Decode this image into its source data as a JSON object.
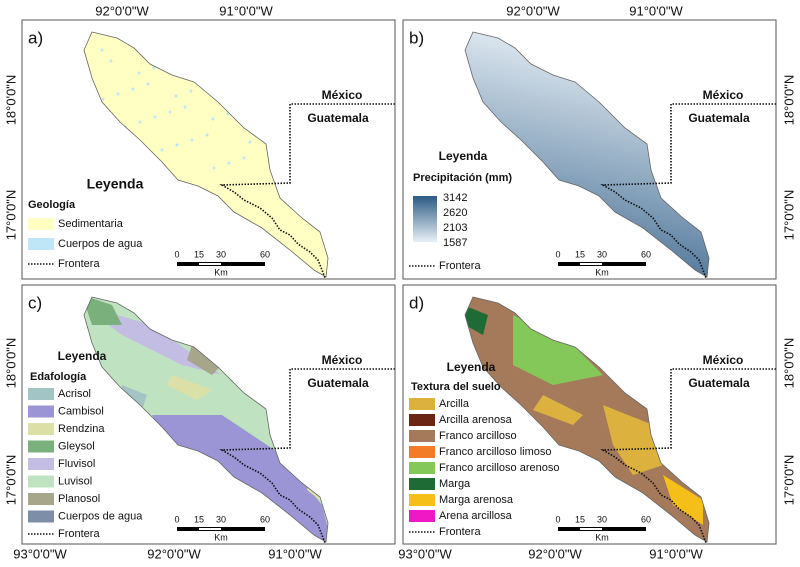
{
  "axis_labels": {
    "top": [
      "92°0'0\"W",
      "91°0'0\"W",
      "92°0'0\"W",
      "91°0'0\"W"
    ],
    "left": [
      "18°0'0\"N",
      "17°0'0\"N",
      "18°0'0\"N",
      "17°0'0\"N"
    ],
    "right": [
      "18°0'0\"N",
      "17°0'0\"N",
      "18°0'0\"N",
      "17°0'0\"N"
    ],
    "bottom": [
      "93°0'0\"W",
      "92°0'0\"W",
      "91°0'0\"W",
      "93°0'0\"W",
      "92°0'0\"W",
      "91°0'0\"W"
    ]
  },
  "panels": [
    {
      "label": "a)",
      "north": "México",
      "south": "Guatemala",
      "legend_title": "Leyenda",
      "legend_subtitle": "Geología",
      "items": [
        {
          "label": "Sedimentaria",
          "color": "#ffffc4"
        },
        {
          "label": "Cuerpos de agua",
          "color": "#bfe6f7"
        }
      ],
      "border": "Frontera",
      "scale": {
        "ticks": [
          "0",
          "15",
          "30",
          "60"
        ],
        "unit": "Km"
      }
    },
    {
      "label": "b)",
      "north": "México",
      "south": "Guatemala",
      "legend_title": "Leyenda",
      "legend_subtitle": "Precipitación (mm)",
      "ramp": {
        "labels": [
          "3142",
          "2620",
          "2103",
          "1587"
        ],
        "colors": [
          "#2c5a84",
          "#e8f0f6"
        ]
      },
      "border": "Frontera",
      "scale": {
        "ticks": [
          "0",
          "15",
          "30",
          "60"
        ],
        "unit": "Km"
      }
    },
    {
      "label": "c)",
      "north": "México",
      "south": "Guatemala",
      "legend_title": "Leyenda",
      "legend_subtitle": "Edafología",
      "items": [
        {
          "label": "Acrisol",
          "color": "#a3c4c4"
        },
        {
          "label": "Cambisol",
          "color": "#9b95d6"
        },
        {
          "label": "Rendzina",
          "color": "#dde0a6"
        },
        {
          "label": "Gleysol",
          "color": "#79b07c"
        },
        {
          "label": "Fluvisol",
          "color": "#c4bde3"
        },
        {
          "label": "Luvisol",
          "color": "#bfe3c0"
        },
        {
          "label": "Planosol",
          "color": "#a7a68a"
        },
        {
          "label": "Cuerpos de agua",
          "color": "#7d8fa8"
        }
      ],
      "border": "Frontera",
      "scale": {
        "ticks": [
          "0",
          "15",
          "30",
          "60"
        ],
        "unit": "Km"
      }
    },
    {
      "label": "d)",
      "north": "México",
      "south": "Guatemala",
      "legend_title": "Leyenda",
      "legend_subtitle": "Textura del suelo",
      "items": [
        {
          "label": "Arcilla",
          "color": "#dcb13e"
        },
        {
          "label": "Arcilla arenosa",
          "color": "#6b2512"
        },
        {
          "label": "Franco arcilloso",
          "color": "#a47a5a"
        },
        {
          "label": "Franco arcilloso limoso",
          "color": "#f27c28"
        },
        {
          "label": "Franco arcilloso arenoso",
          "color": "#85c85a"
        },
        {
          "label": "Marga",
          "color": "#1f6b35"
        },
        {
          "label": "Marga arenosa",
          "color": "#f6bf17"
        },
        {
          "label": "Arena arcillosa",
          "color": "#ef18c4"
        }
      ],
      "border": "Frontera",
      "scale": {
        "ticks": [
          "0",
          "15",
          "30",
          "60"
        ],
        "unit": "Km"
      }
    }
  ]
}
